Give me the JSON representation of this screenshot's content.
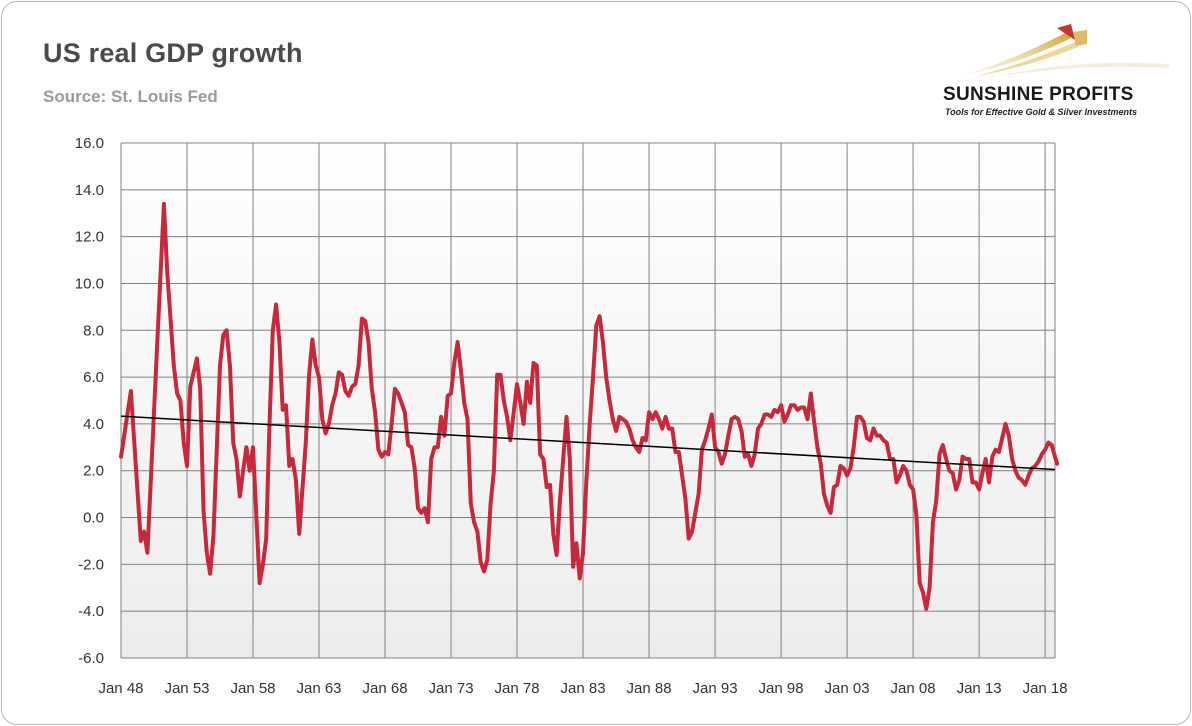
{
  "header": {
    "title": "US real GDP growth",
    "subtitle": "Source: St. Louis Fed"
  },
  "logo": {
    "brand": "SUNSHINE PROFITS",
    "tagline": "Tools for Effective Gold & Silver Investments"
  },
  "colors": {
    "series": "#c8283c",
    "trend": "#000000",
    "grid": "#808080",
    "logo_gold": "#d4a437",
    "logo_red": "#c0392b"
  },
  "chart_data": {
    "type": "line",
    "title": "US real GDP growth",
    "subtitle": "Source: St. Louis Fed",
    "xlabel": "",
    "ylabel": "",
    "ylim": [
      -6.0,
      16.0
    ],
    "y_ticks": [
      "16.0",
      "14.0",
      "12.0",
      "10.0",
      "8.0",
      "6.0",
      "4.0",
      "2.0",
      "0.0",
      "-2.0",
      "-4.0",
      "-6.0"
    ],
    "x_ticks": [
      "Jan 48",
      "Jan 53",
      "Jan 58",
      "Jan 63",
      "Jan 68",
      "Jan 73",
      "Jan 78",
      "Jan 83",
      "Jan 88",
      "Jan 93",
      "Jan 98",
      "Jan 03",
      "Jan 08",
      "Jan 13",
      "Jan 18"
    ],
    "xlim": [
      "1948-01",
      "2018-10"
    ],
    "grid": true,
    "legend": "none",
    "series": [
      {
        "values": [
          [
            "1948-01",
            2.6
          ],
          [
            "1948-10",
            5.4
          ],
          [
            "1949-07",
            -1.0
          ],
          [
            "1949-10",
            -0.6
          ],
          [
            "1950-01",
            -1.5
          ],
          [
            "1950-10",
            7.5
          ],
          [
            "1951-04",
            13.4
          ],
          [
            "1951-07",
            10.5
          ],
          [
            "1952-01",
            6.5
          ],
          [
            "1952-04",
            5.3
          ],
          [
            "1952-07",
            5.0
          ],
          [
            "1952-10",
            3.2
          ],
          [
            "1953-01",
            2.2
          ],
          [
            "1953-04",
            5.6
          ],
          [
            "1953-10",
            6.8
          ],
          [
            "1954-01",
            5.5
          ],
          [
            "1954-04",
            0.3
          ],
          [
            "1954-07",
            -1.5
          ],
          [
            "1954-10",
            -2.4
          ],
          [
            "1955-01",
            -0.8
          ],
          [
            "1955-07",
            6.5
          ],
          [
            "1955-10",
            7.8
          ],
          [
            "1956-01",
            8.0
          ],
          [
            "1956-04",
            6.5
          ],
          [
            "1956-07",
            3.2
          ],
          [
            "1956-10",
            2.5
          ],
          [
            "1957-01",
            0.9
          ],
          [
            "1957-04",
            2.0
          ],
          [
            "1957-07",
            3.0
          ],
          [
            "1957-10",
            2.0
          ],
          [
            "1958-01",
            3.0
          ],
          [
            "1958-07",
            -2.8
          ],
          [
            "1958-10",
            -2.0
          ],
          [
            "1959-01",
            -0.9
          ],
          [
            "1959-04",
            4.0
          ],
          [
            "1959-07",
            8.0
          ],
          [
            "1959-10",
            9.1
          ],
          [
            "1960-01",
            7.5
          ],
          [
            "1960-04",
            4.6
          ],
          [
            "1960-07",
            4.8
          ],
          [
            "1960-10",
            2.2
          ],
          [
            "1961-01",
            2.5
          ],
          [
            "1961-04",
            1.6
          ],
          [
            "1961-07",
            -0.7
          ],
          [
            "1962-01",
            3.2
          ],
          [
            "1962-04",
            6.1
          ],
          [
            "1962-07",
            7.6
          ],
          [
            "1962-10",
            6.5
          ],
          [
            "1963-01",
            6.0
          ],
          [
            "1963-04",
            4.2
          ],
          [
            "1963-07",
            3.6
          ],
          [
            "1963-10",
            4.0
          ],
          [
            "1964-01",
            4.8
          ],
          [
            "1964-04",
            5.3
          ],
          [
            "1964-07",
            6.2
          ],
          [
            "1964-10",
            6.1
          ],
          [
            "1965-01",
            5.4
          ],
          [
            "1965-04",
            5.2
          ],
          [
            "1965-07",
            5.6
          ],
          [
            "1965-10",
            5.7
          ],
          [
            "1966-01",
            6.5
          ],
          [
            "1966-04",
            8.5
          ],
          [
            "1966-07",
            8.4
          ],
          [
            "1966-10",
            7.5
          ],
          [
            "1967-01",
            5.5
          ],
          [
            "1967-04",
            4.5
          ],
          [
            "1967-07",
            2.9
          ],
          [
            "1967-10",
            2.6
          ],
          [
            "1968-01",
            2.8
          ],
          [
            "1968-04",
            2.7
          ],
          [
            "1968-07",
            4.0
          ],
          [
            "1968-10",
            5.5
          ],
          [
            "1969-01",
            5.3
          ],
          [
            "1969-04",
            4.9
          ],
          [
            "1969-07",
            4.5
          ],
          [
            "1969-10",
            3.1
          ],
          [
            "1970-01",
            3.0
          ],
          [
            "1970-04",
            2.1
          ],
          [
            "1970-07",
            0.4
          ],
          [
            "1970-10",
            0.2
          ],
          [
            "1971-01",
            0.4
          ],
          [
            "1971-04",
            -0.2
          ],
          [
            "1971-07",
            2.5
          ],
          [
            "1971-10",
            3.0
          ],
          [
            "1972-01",
            3.0
          ],
          [
            "1972-04",
            4.3
          ],
          [
            "1972-07",
            3.5
          ],
          [
            "1972-10",
            5.2
          ],
          [
            "1973-01",
            5.3
          ],
          [
            "1973-04",
            6.6
          ],
          [
            "1973-07",
            7.5
          ],
          [
            "1973-10",
            6.3
          ],
          [
            "1974-01",
            4.9
          ],
          [
            "1974-04",
            4.2
          ],
          [
            "1974-07",
            0.6
          ],
          [
            "1974-10",
            -0.2
          ],
          [
            "1975-01",
            -0.6
          ],
          [
            "1975-04",
            -1.9
          ],
          [
            "1975-07",
            -2.3
          ],
          [
            "1975-10",
            -1.8
          ],
          [
            "1976-01",
            0.6
          ],
          [
            "1976-04",
            2.0
          ],
          [
            "1976-07",
            6.1
          ],
          [
            "1976-10",
            6.1
          ],
          [
            "1977-01",
            5.0
          ],
          [
            "1977-04",
            4.3
          ],
          [
            "1977-07",
            3.3
          ],
          [
            "1977-10",
            4.5
          ],
          [
            "1978-01",
            5.7
          ],
          [
            "1978-04",
            4.9
          ],
          [
            "1978-07",
            4.0
          ],
          [
            "1978-10",
            5.8
          ],
          [
            "1979-01",
            4.9
          ],
          [
            "1979-04",
            6.6
          ],
          [
            "1979-07",
            6.5
          ],
          [
            "1979-10",
            2.7
          ],
          [
            "1980-01",
            2.5
          ],
          [
            "1980-04",
            1.3
          ],
          [
            "1980-07",
            1.4
          ],
          [
            "1980-10",
            -0.7
          ],
          [
            "1981-01",
            -1.6
          ],
          [
            "1981-04",
            0.7
          ],
          [
            "1981-07",
            2.5
          ],
          [
            "1981-10",
            4.3
          ],
          [
            "1982-01",
            2.5
          ],
          [
            "1982-04",
            -2.1
          ],
          [
            "1982-07",
            -1.1
          ],
          [
            "1982-10",
            -2.6
          ],
          [
            "1983-01",
            -1.5
          ],
          [
            "1983-04",
            1.5
          ],
          [
            "1983-07",
            4.0
          ],
          [
            "1983-10",
            6.0
          ],
          [
            "1984-01",
            8.2
          ],
          [
            "1984-04",
            8.6
          ],
          [
            "1984-07",
            7.5
          ],
          [
            "1984-10",
            6.0
          ],
          [
            "1985-01",
            5.0
          ],
          [
            "1985-04",
            4.2
          ],
          [
            "1985-07",
            3.7
          ],
          [
            "1985-10",
            4.3
          ],
          [
            "1986-01",
            4.2
          ],
          [
            "1986-04",
            4.1
          ],
          [
            "1986-07",
            3.8
          ],
          [
            "1986-10",
            3.3
          ],
          [
            "1987-01",
            3.0
          ],
          [
            "1987-04",
            2.8
          ],
          [
            "1987-07",
            3.4
          ],
          [
            "1987-10",
            3.3
          ],
          [
            "1988-01",
            4.5
          ],
          [
            "1988-04",
            4.2
          ],
          [
            "1988-07",
            4.5
          ],
          [
            "1988-10",
            4.2
          ],
          [
            "1989-01",
            3.8
          ],
          [
            "1989-04",
            4.3
          ],
          [
            "1989-07",
            3.8
          ],
          [
            "1989-10",
            3.8
          ],
          [
            "1990-01",
            2.8
          ],
          [
            "1990-04",
            2.8
          ],
          [
            "1990-07",
            1.8
          ],
          [
            "1990-10",
            0.8
          ],
          [
            "1991-01",
            -0.9
          ],
          [
            "1991-04",
            -0.6
          ],
          [
            "1991-07",
            0.2
          ],
          [
            "1991-10",
            1.0
          ],
          [
            "1992-01",
            2.9
          ],
          [
            "1992-04",
            3.3
          ],
          [
            "1992-07",
            3.8
          ],
          [
            "1992-10",
            4.4
          ],
          [
            "1993-01",
            3.0
          ],
          [
            "1993-04",
            2.8
          ],
          [
            "1993-07",
            2.3
          ],
          [
            "1993-10",
            2.7
          ],
          [
            "1994-01",
            3.5
          ],
          [
            "1994-04",
            4.2
          ],
          [
            "1994-07",
            4.3
          ],
          [
            "1994-10",
            4.2
          ],
          [
            "1995-01",
            3.7
          ],
          [
            "1995-04",
            2.6
          ],
          [
            "1995-07",
            2.7
          ],
          [
            "1995-10",
            2.2
          ],
          [
            "1996-01",
            2.7
          ],
          [
            "1996-04",
            3.8
          ],
          [
            "1996-07",
            4.0
          ],
          [
            "1996-10",
            4.4
          ],
          [
            "1997-01",
            4.4
          ],
          [
            "1997-04",
            4.3
          ],
          [
            "1997-07",
            4.6
          ],
          [
            "1997-10",
            4.5
          ],
          [
            "1998-01",
            4.8
          ],
          [
            "1998-04",
            4.1
          ],
          [
            "1998-07",
            4.4
          ],
          [
            "1998-10",
            4.8
          ],
          [
            "1999-01",
            4.8
          ],
          [
            "1999-04",
            4.6
          ],
          [
            "1999-07",
            4.7
          ],
          [
            "1999-10",
            4.7
          ],
          [
            "2000-01",
            4.2
          ],
          [
            "2000-04",
            5.3
          ],
          [
            "2000-07",
            4.1
          ],
          [
            "2000-10",
            3.0
          ],
          [
            "2001-01",
            2.3
          ],
          [
            "2001-04",
            1.0
          ],
          [
            "2001-07",
            0.5
          ],
          [
            "2001-10",
            0.2
          ],
          [
            "2002-01",
            1.3
          ],
          [
            "2002-04",
            1.4
          ],
          [
            "2002-07",
            2.2
          ],
          [
            "2002-10",
            2.1
          ],
          [
            "2003-01",
            1.8
          ],
          [
            "2003-04",
            2.1
          ],
          [
            "2003-07",
            3.0
          ],
          [
            "2003-10",
            4.3
          ],
          [
            "2004-01",
            4.3
          ],
          [
            "2004-04",
            4.1
          ],
          [
            "2004-07",
            3.4
          ],
          [
            "2004-10",
            3.3
          ],
          [
            "2005-01",
            3.8
          ],
          [
            "2005-04",
            3.5
          ],
          [
            "2005-07",
            3.5
          ],
          [
            "2005-10",
            3.3
          ],
          [
            "2006-01",
            3.2
          ],
          [
            "2006-04",
            2.5
          ],
          [
            "2006-07",
            2.5
          ],
          [
            "2006-10",
            1.5
          ],
          [
            "2007-01",
            1.8
          ],
          [
            "2007-04",
            2.2
          ],
          [
            "2007-07",
            2.0
          ],
          [
            "2007-10",
            1.4
          ],
          [
            "2008-01",
            1.2
          ],
          [
            "2008-04",
            0.1
          ],
          [
            "2008-07",
            -2.8
          ],
          [
            "2008-10",
            -3.2
          ],
          [
            "2009-01",
            -3.9
          ],
          [
            "2009-04",
            -3.0
          ],
          [
            "2009-07",
            -0.2
          ],
          [
            "2009-10",
            0.7
          ],
          [
            "2010-01",
            2.7
          ],
          [
            "2010-04",
            3.1
          ],
          [
            "2010-07",
            2.5
          ],
          [
            "2010-10",
            2.0
          ],
          [
            "2011-01",
            1.9
          ],
          [
            "2011-04",
            1.2
          ],
          [
            "2011-07",
            1.6
          ],
          [
            "2011-10",
            2.6
          ],
          [
            "2012-01",
            2.5
          ],
          [
            "2012-04",
            2.5
          ],
          [
            "2012-07",
            1.5
          ],
          [
            "2012-10",
            1.5
          ],
          [
            "2013-01",
            1.2
          ],
          [
            "2013-04",
            1.9
          ],
          [
            "2013-07",
            2.5
          ],
          [
            "2013-10",
            1.5
          ],
          [
            "2014-01",
            2.6
          ],
          [
            "2014-04",
            2.9
          ],
          [
            "2014-07",
            2.8
          ],
          [
            "2014-10",
            3.4
          ],
          [
            "2015-01",
            4.0
          ],
          [
            "2015-04",
            3.5
          ],
          [
            "2015-07",
            2.5
          ],
          [
            "2015-10",
            2.0
          ],
          [
            "2016-01",
            1.7
          ],
          [
            "2016-04",
            1.6
          ],
          [
            "2016-07",
            1.4
          ],
          [
            "2016-10",
            1.8
          ],
          [
            "2017-01",
            2.1
          ],
          [
            "2017-04",
            2.2
          ],
          [
            "2017-07",
            2.4
          ],
          [
            "2017-10",
            2.7
          ],
          [
            "2018-01",
            2.9
          ],
          [
            "2018-04",
            3.2
          ],
          [
            "2018-07",
            3.1
          ],
          [
            "2018-10",
            2.6
          ],
          [
            "2018-12",
            2.3
          ]
        ]
      }
    ],
    "trendline": {
      "start": [
        "1948-01",
        4.33
      ],
      "end": [
        "2018-12",
        2.05
      ]
    }
  }
}
